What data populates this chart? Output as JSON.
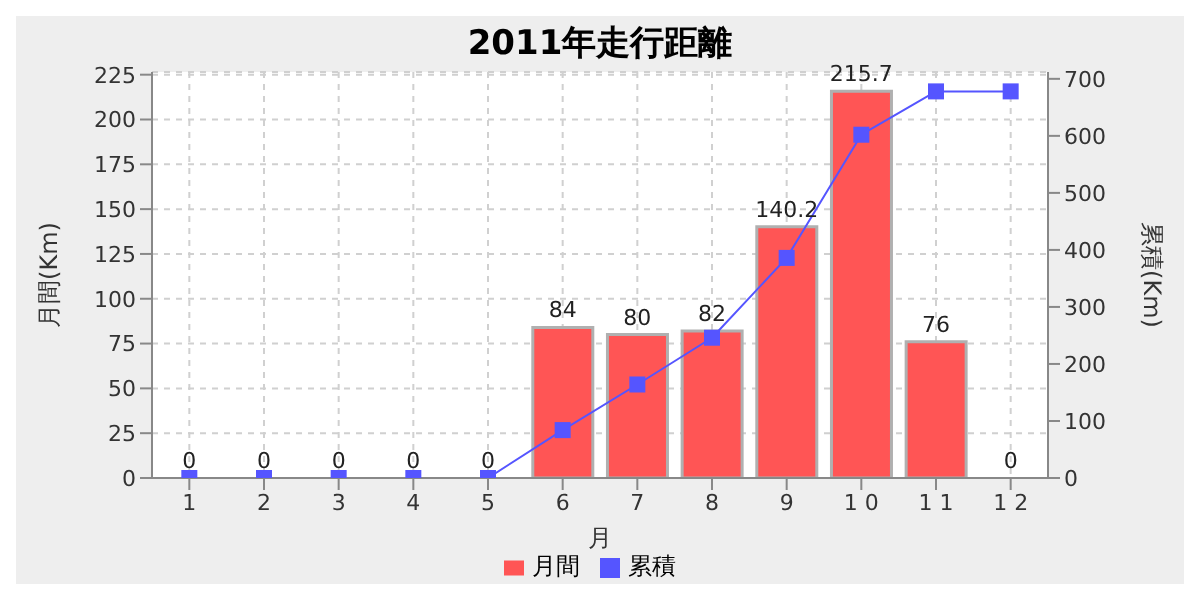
{
  "chart_data": {
    "type": "bar",
    "title": "2011年走行距離",
    "xlabel": "月",
    "ylabel": "月間(Km)",
    "y2label": "累積(Km)",
    "categories": [
      "1",
      "2",
      "3",
      "4",
      "5",
      "6",
      "7",
      "8",
      "9",
      "1 0",
      "1 1",
      "1 2"
    ],
    "series": [
      {
        "name": "月間",
        "color": "#ff5555",
        "values": [
          0,
          0,
          0,
          0,
          0,
          84,
          80,
          82,
          140.2,
          215.7,
          76,
          0
        ],
        "value_labels": [
          "0",
          "0",
          "0",
          "0",
          "0",
          "84",
          "80",
          "82",
          "140.2",
          "215.7",
          "76",
          "0"
        ]
      },
      {
        "name": "累積",
        "type": "line",
        "axis": "y2",
        "color": "#5555ff",
        "marker": "square",
        "values": [
          0,
          0,
          0,
          0,
          0,
          84,
          164,
          246,
          386,
          602,
          678,
          678
        ]
      }
    ],
    "ylim": [
      0,
      226.5
    ],
    "yticks": [
      0,
      25,
      50,
      75,
      100,
      125,
      150,
      175,
      200,
      225
    ],
    "y2lim": [
      0,
      712
    ],
    "y2ticks": [
      0,
      100,
      200,
      300,
      400,
      500,
      600,
      700
    ],
    "grid": true,
    "legend": "bottom"
  }
}
